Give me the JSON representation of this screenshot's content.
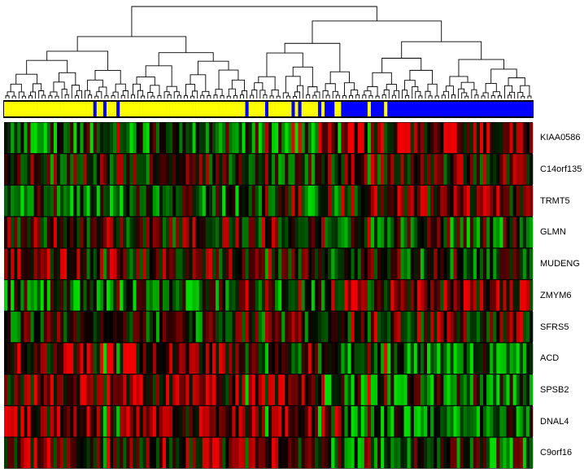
{
  "chart_data": {
    "type": "heatmap",
    "title": "",
    "xlabel": "",
    "ylabel": "",
    "genes": [
      "KIAA0586",
      "C14orf135",
      "TRMT5",
      "GLMN",
      "MUDENG",
      "ZMYM6",
      "SFRS5",
      "ACD",
      "SPSB2",
      "DNAL4",
      "C9orf16"
    ],
    "sample_count": 160,
    "sample_groups": {
      "legend": "none",
      "groups": [
        {
          "id": "yellow",
          "color": "#ffff00"
        },
        {
          "id": "blue",
          "color": "#0000ff"
        }
      ],
      "assignment": "yyyyyyyyyyyyyyyyyyyyyyyyyyybyybyyybyyyyyyyyyyyyyyyyyyyyyyyyyyyyyyyyyyyyyybyyyyybyyyyyyybybyyyyybybbbyybbbbbbbbybbbbybbbbbbbbbbbbbbbbbbbbbbbbbbbbbbbbbbbbbbbbbbbbb"
    },
    "color_scale": {
      "low": "#00dd00",
      "mid": "#000000",
      "high": "#ee0000"
    },
    "grid": false,
    "dendrogram": "top"
  }
}
